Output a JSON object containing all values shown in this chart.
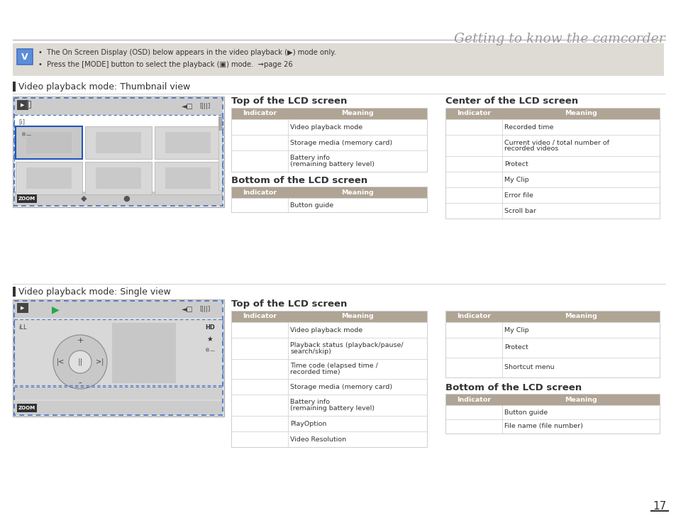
{
  "page_title": "Getting to know the camcorder",
  "page_number": "17",
  "section1_title": "Video playback mode: Thumbnail view",
  "section2_title": "Video playback mode: Single view",
  "top1_title": "Top of the LCD screen",
  "bottom1_title": "Bottom of the LCD screen",
  "center1_title": "Center of the LCD screen",
  "top2_title": "Top of the LCD screen",
  "bottom2_title": "Bottom of the LCD screen",
  "header_bg": "#b0a494",
  "header_text": "#ffffff",
  "border_color": "#cccccc",
  "note_bg": "#dedad4",
  "title_color": "#999999",
  "body_text_color": "#333333",
  "section_title_color": "#444444",
  "table1_top_rows": [
    [
      "Video playback mode"
    ],
    [
      "Storage media (memory card)"
    ],
    [
      "Battery info\n(remaining battery level)"
    ]
  ],
  "table1_bottom_rows": [
    [
      "Button guide"
    ]
  ],
  "table1_center_rows": [
    [
      "Recorded time"
    ],
    [
      "Current video / total number of\nrecorded videos"
    ],
    [
      "Protect"
    ],
    [
      "My Clip"
    ],
    [
      "Error file"
    ],
    [
      "Scroll bar"
    ]
  ],
  "table2_top_rows": [
    [
      "Video playback mode"
    ],
    [
      "Playback status (playback/pause/\nsearch/skip)"
    ],
    [
      "Time code (elapsed time /\nrecorded time)"
    ],
    [
      "Storage media (memory card)"
    ],
    [
      "Battery info\n(remaining battery level)"
    ],
    [
      "PlayOption"
    ],
    [
      "Video Resolution"
    ]
  ],
  "table2_center_rows": [
    [
      "My Clip"
    ],
    [
      "Protect"
    ],
    [
      "Shortcut menu"
    ]
  ],
  "table2_bottom_rows": [
    [
      "Button guide"
    ],
    [
      "File name (file number)"
    ]
  ]
}
